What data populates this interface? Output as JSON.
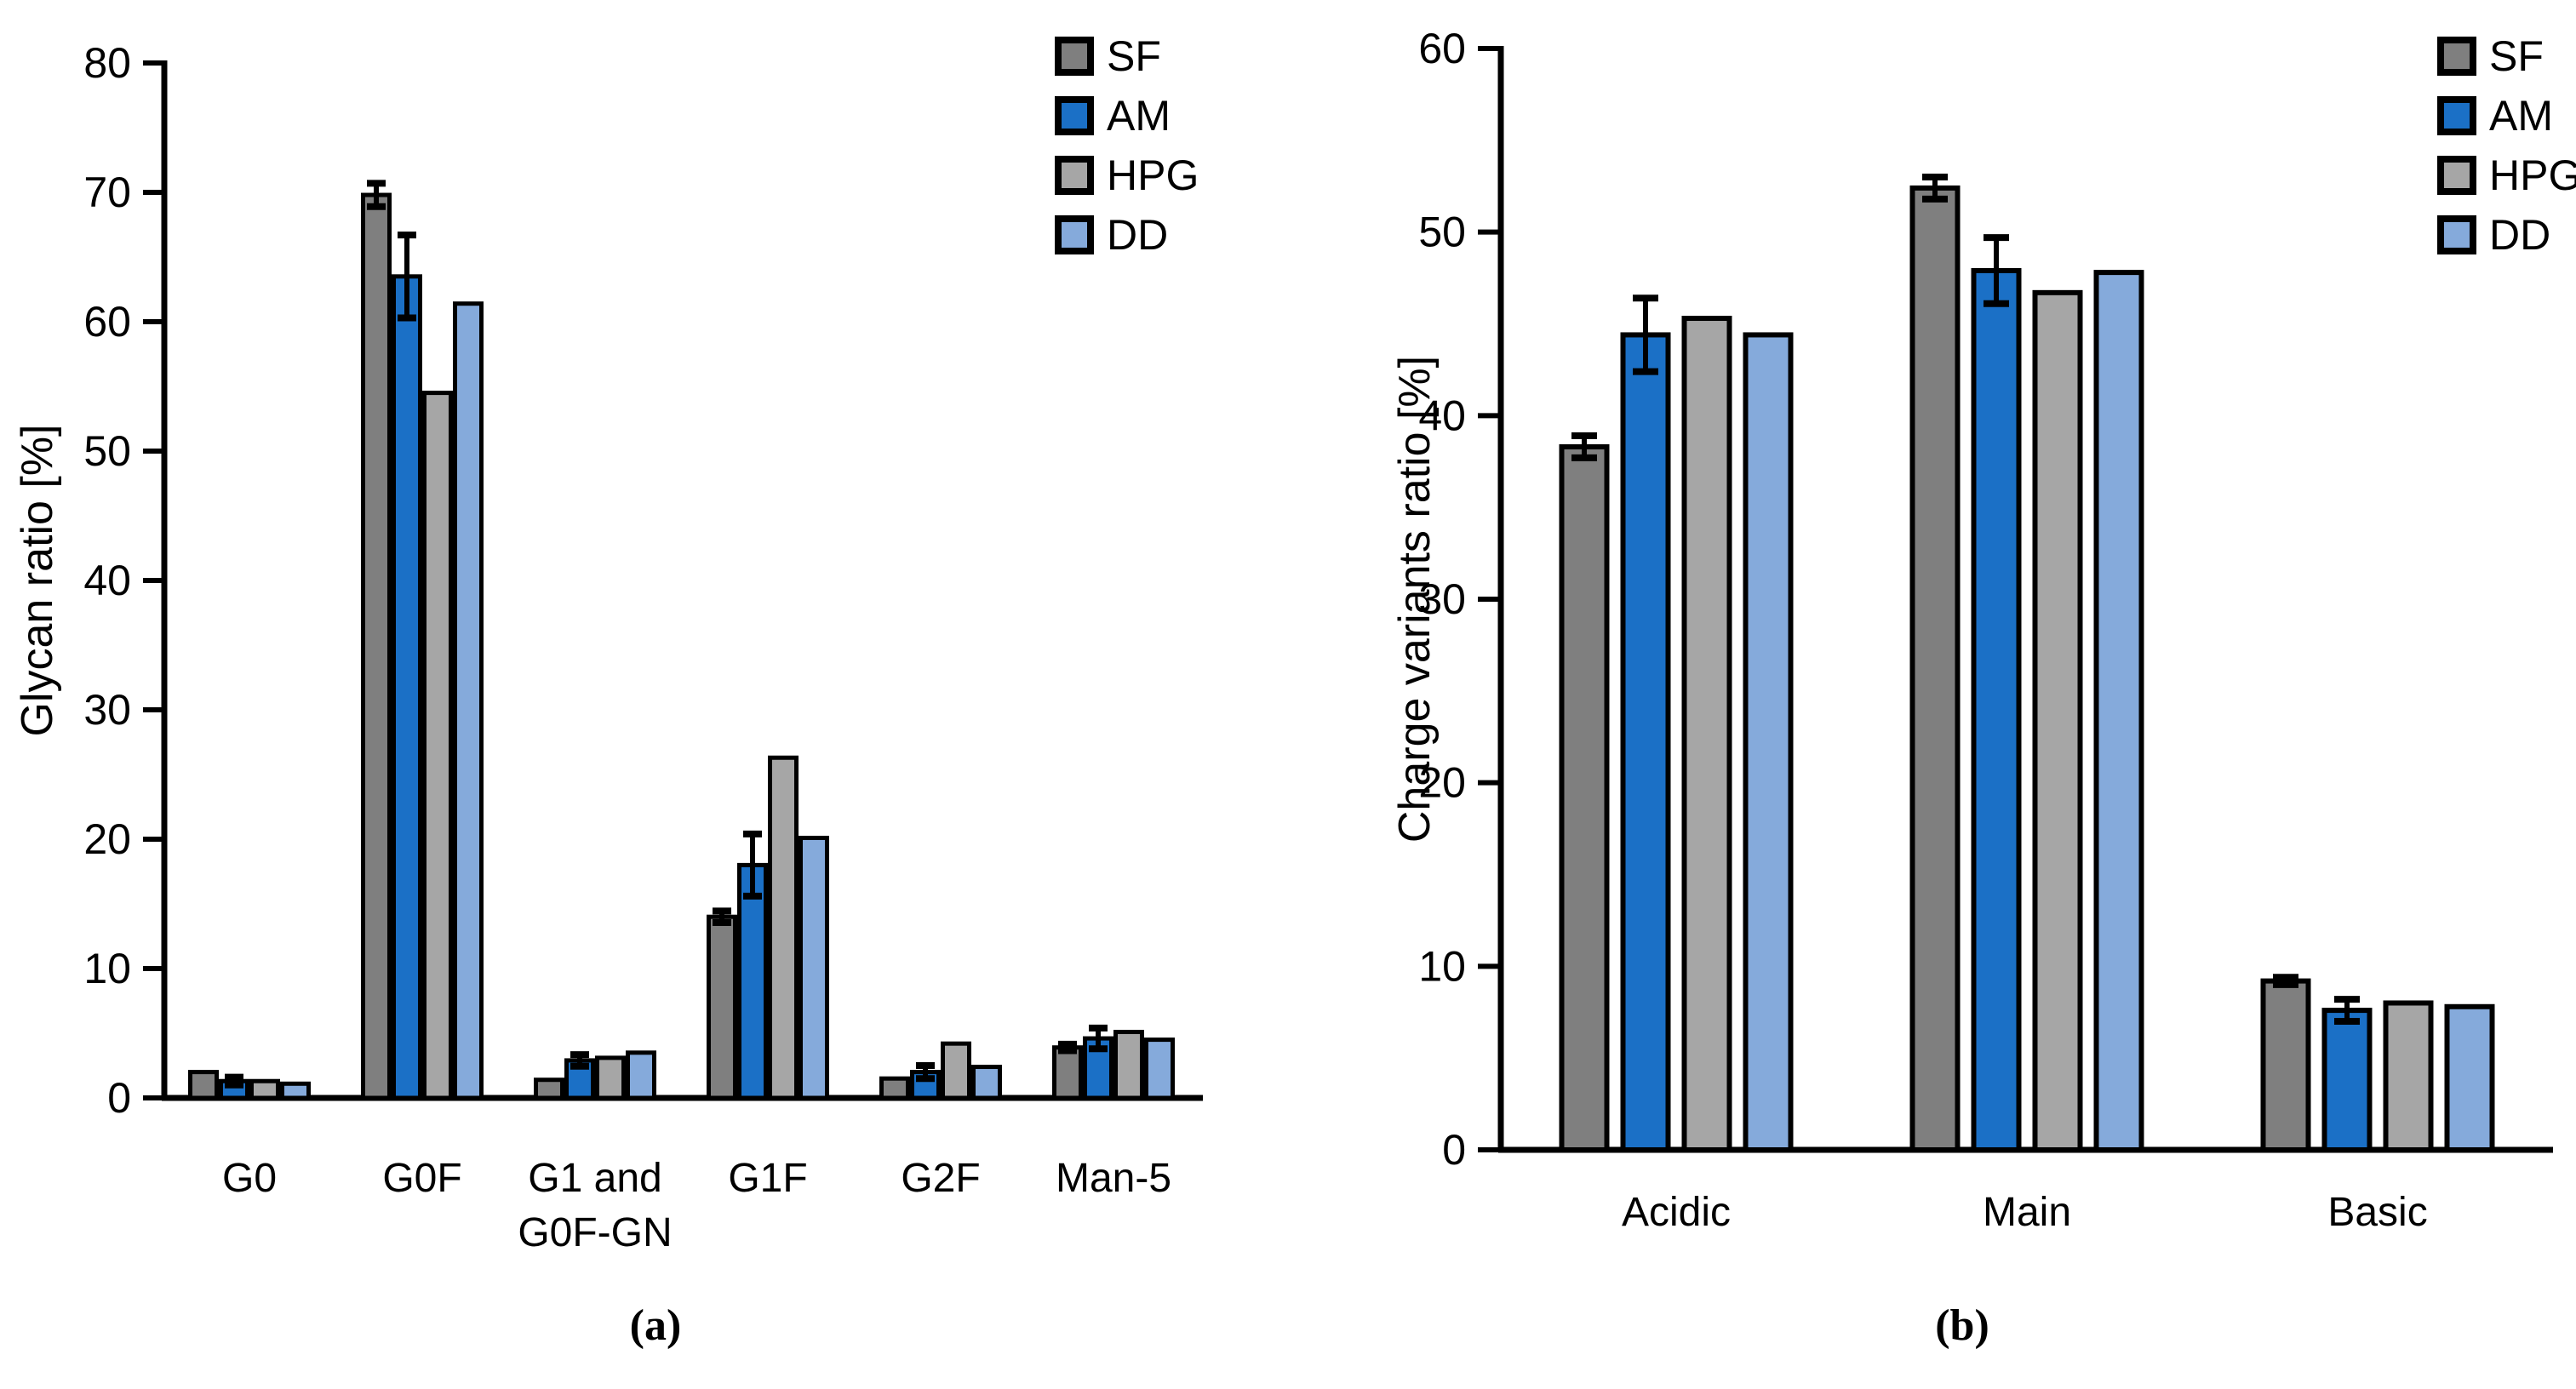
{
  "figure": {
    "caption_a": "(a)",
    "caption_b": "(b)",
    "background": "#ffffff",
    "outline_color": "#000000",
    "series_colors": {
      "SF": "#7F7F7F",
      "AM": "#1B70C6",
      "HPG": "#A6A6A6",
      "DD": "#85AADB"
    },
    "legend_labels": [
      "SF",
      "AM",
      "HPG",
      "DD"
    ]
  },
  "chart_data": [
    {
      "id": "a",
      "type": "bar",
      "title": "",
      "xlabel": "",
      "ylabel": "Glycan ratio [%]",
      "ylim": [
        0,
        80
      ],
      "ytick_step": 10,
      "ytick_labels": [
        "0",
        "10",
        "20",
        "30",
        "40",
        "50",
        "60",
        "70",
        "80"
      ],
      "grid": false,
      "legend_position": "top-right",
      "legend_entries": [
        "SF",
        "AM",
        "HPG",
        "DD"
      ],
      "categories": [
        "G0",
        "G0F",
        "G1 and\nG0F-GN",
        "G1F",
        "G2F",
        "Man-5"
      ],
      "series": [
        {
          "name": "SF",
          "values": [
            2.0,
            69.8,
            1.4,
            14.0,
            1.5,
            3.9
          ],
          "errors": [
            0,
            0.9,
            0,
            0.45,
            0,
            0.25
          ]
        },
        {
          "name": "AM",
          "values": [
            1.3,
            63.5,
            2.9,
            18.0,
            2.0,
            4.6
          ],
          "errors": [
            0.3,
            3.2,
            0.45,
            2.4,
            0.5,
            0.8
          ]
        },
        {
          "name": "HPG",
          "values": [
            1.3,
            54.5,
            3.1,
            26.3,
            4.2,
            5.1
          ],
          "errors": [
            0,
            0,
            0,
            0,
            0,
            0
          ]
        },
        {
          "name": "DD",
          "values": [
            1.1,
            61.4,
            3.5,
            20.1,
            2.4,
            4.5
          ],
          "errors": [
            0,
            0,
            0,
            0,
            0,
            0
          ]
        }
      ]
    },
    {
      "id": "b",
      "type": "bar",
      "title": "",
      "xlabel": "",
      "ylabel": "Charge variants ratio [%]",
      "ylim": [
        0,
        60
      ],
      "ytick_step": 10,
      "ytick_labels": [
        "0",
        "10",
        "20",
        "30",
        "40",
        "50",
        "60"
      ],
      "grid": false,
      "legend_position": "top-right",
      "legend_entries": [
        "SF",
        "AM",
        "HPG",
        "DD"
      ],
      "categories": [
        "Acidic",
        "Main",
        "Basic"
      ],
      "series": [
        {
          "name": "SF",
          "values": [
            38.3,
            52.4,
            9.2
          ],
          "errors": [
            0.6,
            0.6,
            0.2
          ]
        },
        {
          "name": "AM",
          "values": [
            44.4,
            47.9,
            7.6
          ],
          "errors": [
            2.0,
            1.8,
            0.6
          ]
        },
        {
          "name": "HPG",
          "values": [
            45.3,
            46.7,
            8.0
          ],
          "errors": [
            0,
            0,
            0
          ]
        },
        {
          "name": "DD",
          "values": [
            44.4,
            47.8,
            7.8
          ],
          "errors": [
            0,
            0,
            0
          ]
        }
      ]
    }
  ]
}
